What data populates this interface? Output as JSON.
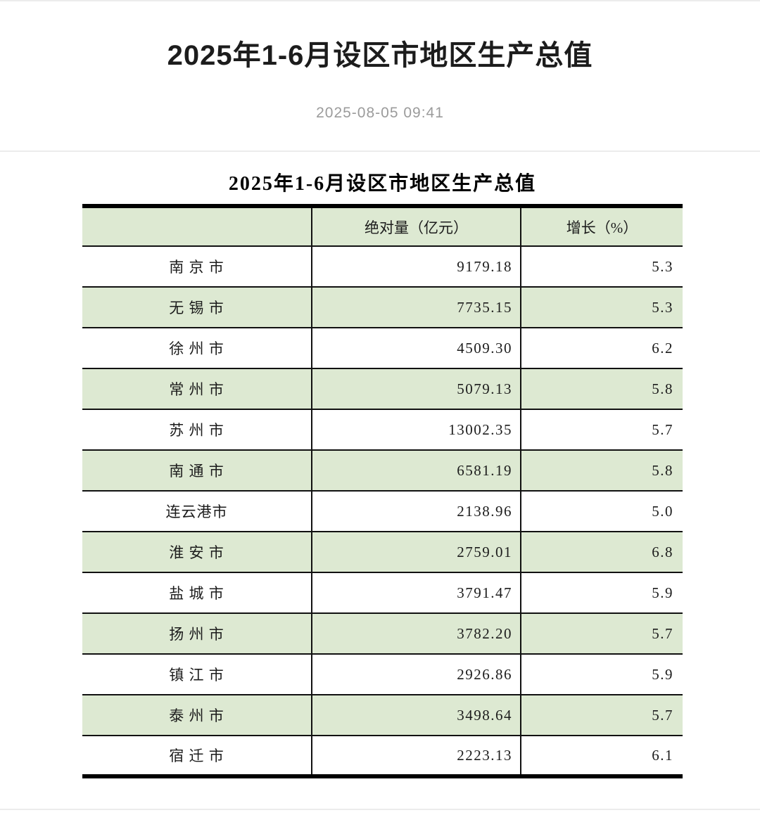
{
  "page": {
    "title": "2025年1-6月设区市地区生产总值",
    "date": "2025-08-05 09:41"
  },
  "theme": {
    "green": "#dde9d2",
    "line-black": "#111111",
    "heavy-black": "#000000",
    "hairline": "#ececec",
    "date-gray": "#9b9b9b",
    "text-dark": "#1c1c1c"
  },
  "table": {
    "title": "2025年1-6月设区市地区生产总值",
    "columns": [
      "",
      "绝对量（亿元）",
      "增长（%）"
    ],
    "rows": [
      {
        "city": "南 京 市",
        "value": "9179.18",
        "growth": "5.3"
      },
      {
        "city": "无 锡 市",
        "value": "7735.15",
        "growth": "5.3"
      },
      {
        "city": "徐 州 市",
        "value": "4509.30",
        "growth": "6.2"
      },
      {
        "city": "常 州 市",
        "value": "5079.13",
        "growth": "5.8"
      },
      {
        "city": "苏 州 市",
        "value": "13002.35",
        "growth": "5.7"
      },
      {
        "city": "南 通 市",
        "value": "6581.19",
        "growth": "5.8"
      },
      {
        "city": "连云港市",
        "value": "2138.96",
        "growth": "5.0"
      },
      {
        "city": "淮 安 市",
        "value": "2759.01",
        "growth": "6.8"
      },
      {
        "city": "盐 城 市",
        "value": "3791.47",
        "growth": "5.9"
      },
      {
        "city": "扬 州 市",
        "value": "3782.20",
        "growth": "5.7"
      },
      {
        "city": "镇 江 市",
        "value": "2926.86",
        "growth": "5.9"
      },
      {
        "city": "泰 州 市",
        "value": "3498.64",
        "growth": "5.7"
      },
      {
        "city": "宿 迁 市",
        "value": "2223.13",
        "growth": "6.1"
      }
    ]
  }
}
